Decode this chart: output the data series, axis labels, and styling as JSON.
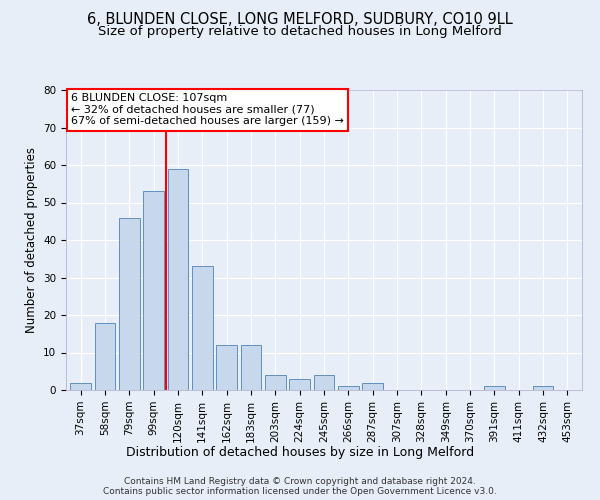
{
  "title1": "6, BLUNDEN CLOSE, LONG MELFORD, SUDBURY, CO10 9LL",
  "title2": "Size of property relative to detached houses in Long Melford",
  "xlabel": "Distribution of detached houses by size in Long Melford",
  "ylabel": "Number of detached properties",
  "categories": [
    "37sqm",
    "58sqm",
    "79sqm",
    "99sqm",
    "120sqm",
    "141sqm",
    "162sqm",
    "183sqm",
    "203sqm",
    "224sqm",
    "245sqm",
    "266sqm",
    "287sqm",
    "307sqm",
    "328sqm",
    "349sqm",
    "370sqm",
    "391sqm",
    "411sqm",
    "432sqm",
    "453sqm"
  ],
  "values": [
    2,
    18,
    46,
    53,
    59,
    33,
    12,
    12,
    4,
    3,
    4,
    1,
    2,
    0,
    0,
    0,
    0,
    1,
    0,
    1,
    0
  ],
  "bar_color": "#c8d8ec",
  "bar_edge_color": "#6090c0",
  "ylim": [
    0,
    80
  ],
  "yticks": [
    0,
    10,
    20,
    30,
    40,
    50,
    60,
    70,
    80
  ],
  "vline_x": 3.5,
  "vline_color": "red",
  "annotation_line1": "6 BLUNDEN CLOSE: 107sqm",
  "annotation_line2": "← 32% of detached houses are smaller (77)",
  "annotation_line3": "67% of semi-detached houses are larger (159) →",
  "footer1": "Contains HM Land Registry data © Crown copyright and database right 2024.",
  "footer2": "Contains public sector information licensed under the Open Government Licence v3.0.",
  "background_color": "#e8eef8",
  "plot_bg_color": "#e8eef8",
  "grid_color": "#ffffff",
  "title1_fontsize": 10.5,
  "title2_fontsize": 9.5,
  "xlabel_fontsize": 9,
  "ylabel_fontsize": 8.5,
  "tick_fontsize": 7.5,
  "annot_fontsize": 8,
  "footer_fontsize": 6.5
}
